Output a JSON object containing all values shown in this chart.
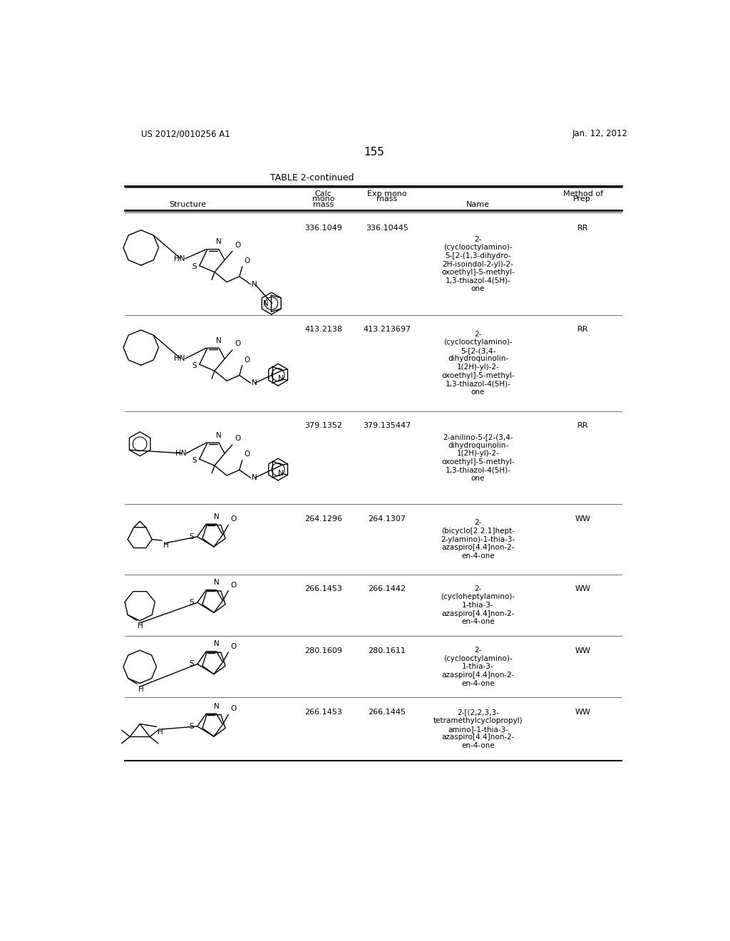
{
  "page_number": "155",
  "patent_number": "US 2012/0010256 A1",
  "patent_date": "Jan. 12, 2012",
  "table_title": "TABLE 2-continued",
  "rows": [
    {
      "calc_mono_mass": "336.1049",
      "exp_mono_mass": "336.10445",
      "name": "2-\n(cyclooctylamino)-\n5-[2-(1,3-dihydro-\n2H-isoindol-2-yl)-2-\noxoethyl]-5-methyl-\n1,3-thiazol-4(5H)-\none",
      "method": "RR"
    },
    {
      "calc_mono_mass": "413.2138",
      "exp_mono_mass": "413.213697",
      "name": "2-\n(cyclooctylamino)-\n5-[2-(3,4-\ndihydroquinolin-\n1(2H)-yl)-2-\noxoethyl]-5-methyl-\n1,3-thiazol-4(5H)-\none",
      "method": "RR"
    },
    {
      "calc_mono_mass": "379.1352",
      "exp_mono_mass": "379.135447",
      "name": "2-anilino-5-[2-(3,4-\ndihydroquinolin-\n1(2H)-yl)-2-\noxoethyl]-5-methyl-\n1,3-thiazol-4(5H)-\none",
      "method": "RR"
    },
    {
      "calc_mono_mass": "264.1296",
      "exp_mono_mass": "264.1307",
      "name": "2-\n(bicyclo[2.2.1]hept-\n2-ylamino)-1-thia-3-\nazaspiro[4.4]non-2-\nen-4-one",
      "method": "WW"
    },
    {
      "calc_mono_mass": "266.1453",
      "exp_mono_mass": "266.1442",
      "name": "2-\n(cycloheptylamino)-\n1-thia-3-\nazaspiro[4.4]non-2-\nen-4-one",
      "method": "WW"
    },
    {
      "calc_mono_mass": "280.1609",
      "exp_mono_mass": "280.1611",
      "name": "2-\n(cyclooctylamino)-\n1-thia-3-\nazaspiro[4.4]non-2-\nen-4-one",
      "method": "WW"
    },
    {
      "calc_mono_mass": "266.1453",
      "exp_mono_mass": "266.1445",
      "name": "2-[(2,2,3,3-\ntetramethylcyclopropyl)\namino]-1-thia-3-\nazaspiro[4.4]non-2-\nen-4-one",
      "method": "WW"
    }
  ],
  "bg_color": "#ffffff",
  "lw": 1.0,
  "font_size": 8.0
}
